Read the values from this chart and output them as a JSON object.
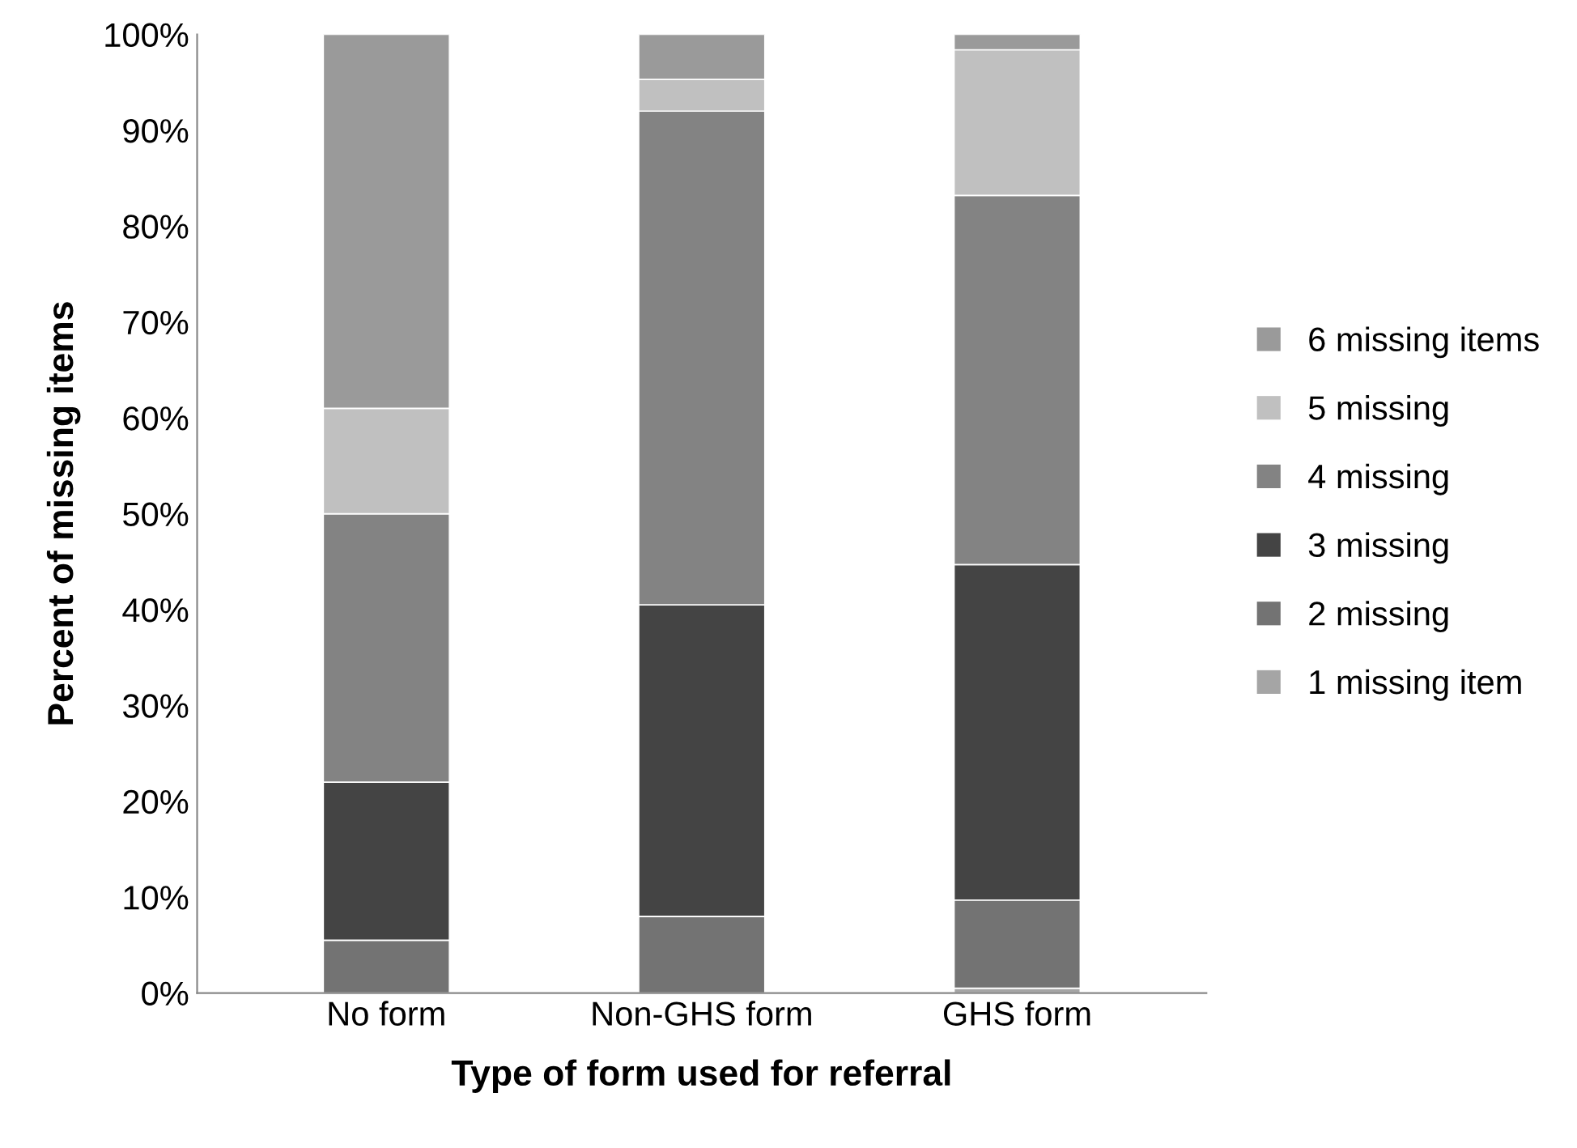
{
  "chart_data": {
    "type": "bar",
    "stacked": true,
    "xlabel": "Type of form used for referral",
    "ylabel": "Percent of missing items",
    "categories": [
      "No form",
      "Non-GHS form",
      "GHS form"
    ],
    "series": [
      {
        "name": "1 missing item",
        "color": "#a5a5a5",
        "values": [
          0,
          0,
          0.5
        ]
      },
      {
        "name": "2 missing",
        "color": "#737373",
        "values": [
          5.5,
          8,
          9.2
        ]
      },
      {
        "name": "3 missing",
        "color": "#444444",
        "values": [
          16.5,
          32.5,
          35
        ]
      },
      {
        "name": "4 missing",
        "color": "#838383",
        "values": [
          28,
          51.5,
          38.5
        ]
      },
      {
        "name": "5 missing",
        "color": "#c0c0c0",
        "values": [
          11,
          3.3,
          15.2
        ]
      },
      {
        "name": "6 missing items",
        "color": "#9a9a9a",
        "values": [
          39,
          4.7,
          1.6
        ]
      }
    ],
    "ylim": [
      0,
      100
    ],
    "yticks": [
      {
        "value": 0,
        "label": "0%"
      },
      {
        "value": 10,
        "label": "10%"
      },
      {
        "value": 20,
        "label": "20%"
      },
      {
        "value": 30,
        "label": "30%"
      },
      {
        "value": 40,
        "label": "40%"
      },
      {
        "value": 50,
        "label": "50%"
      },
      {
        "value": 60,
        "label": "60%"
      },
      {
        "value": 70,
        "label": "70%"
      },
      {
        "value": 80,
        "label": "80%"
      },
      {
        "value": 90,
        "label": "90%"
      },
      {
        "value": 100,
        "label": "100%"
      }
    ],
    "grid": false,
    "legend": "right"
  }
}
